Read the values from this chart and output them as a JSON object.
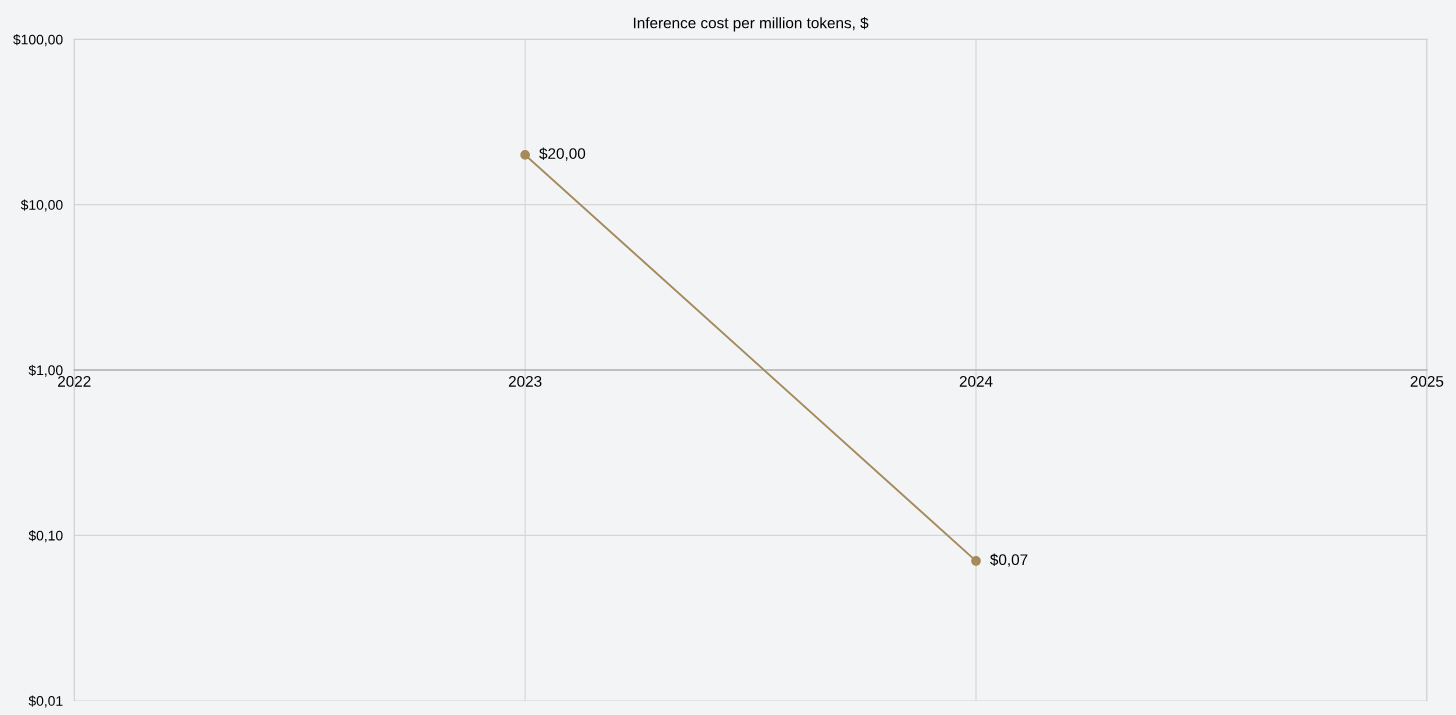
{
  "chart_data": {
    "type": "line",
    "title": "Inference cost per million tokens, $",
    "x": [
      2023,
      2024
    ],
    "series": [
      {
        "color": "#a68a5b",
        "values": [
          20,
          0.07
        ],
        "value_labels": [
          "$20,00",
          "$0,07"
        ]
      }
    ],
    "xlim": [
      2022,
      2025
    ],
    "xticks": [
      2022,
      2023,
      2024,
      2025
    ],
    "ylim": [
      0.01,
      100
    ],
    "yticks": [
      {
        "value": 0.01,
        "label": "$0,01"
      },
      {
        "value": 0.1,
        "label": "$0,10"
      },
      {
        "value": 1,
        "label": "$1,00"
      },
      {
        "value": 10,
        "label": "$10,00"
      },
      {
        "value": 100,
        "label": "$100,00"
      }
    ],
    "log": true,
    "grid": true,
    "marker": "circle",
    "line_style": "solid"
  }
}
